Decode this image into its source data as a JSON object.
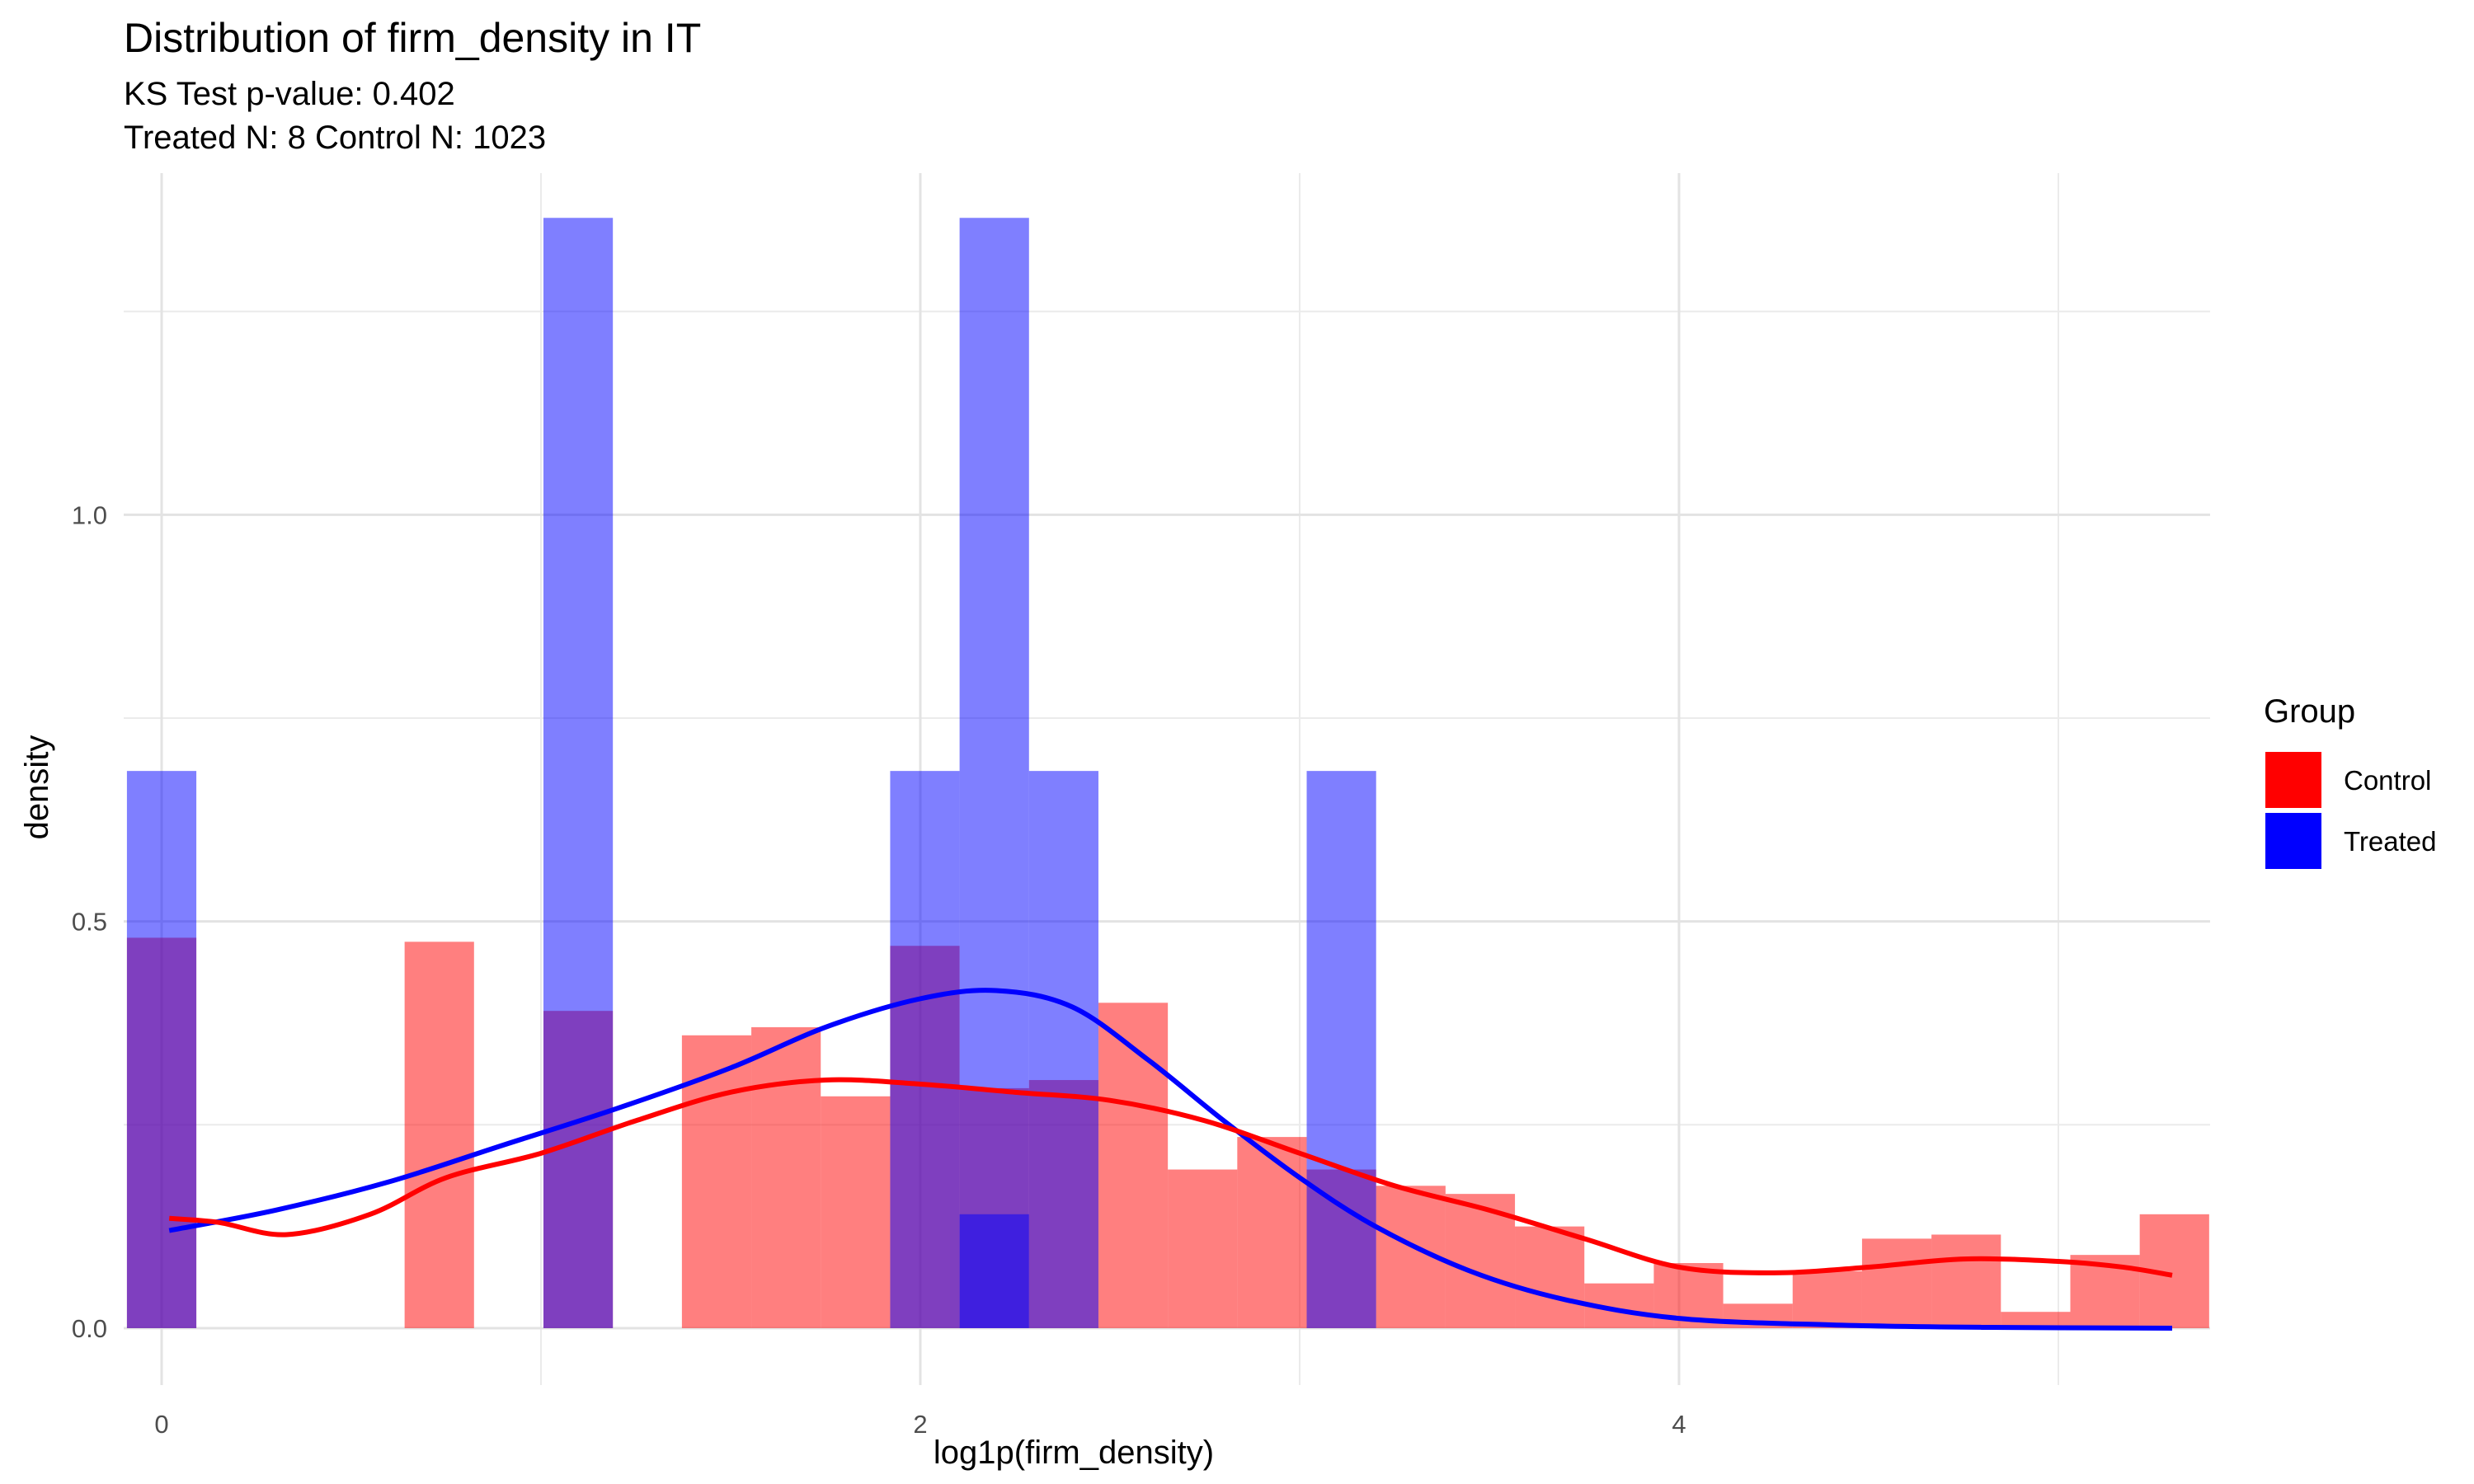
{
  "chart_data": {
    "type": "histogram",
    "title": "Distribution of firm_density in IT",
    "subtitle_line1": "KS Test p-value: 0.402",
    "subtitle_line2": "Treated N: 8 Control N: 1023",
    "xlabel": "log1p(firm_density)",
    "ylabel": "density",
    "xlim": [
      -0.1,
      5.4
    ],
    "ylim": [
      -0.07,
      1.42
    ],
    "x_ticks": [
      0,
      2,
      4
    ],
    "x_tick_labels": [
      "0",
      "2",
      "4"
    ],
    "y_ticks": [
      0.0,
      0.5,
      1.0
    ],
    "y_tick_labels": [
      "0.0",
      "0.5",
      "1.0"
    ],
    "grid": true,
    "legend_title": "Group",
    "legend_position": "right",
    "series": [
      {
        "name": "Control",
        "color": "#FF0000",
        "bin_width": 0.183,
        "bins": [
          {
            "x": 0.0,
            "density": 0.48
          },
          {
            "x": 0.732,
            "density": 0.475
          },
          {
            "x": 1.098,
            "density": 0.39
          },
          {
            "x": 1.463,
            "density": 0.36
          },
          {
            "x": 1.646,
            "density": 0.37
          },
          {
            "x": 1.829,
            "density": 0.285
          },
          {
            "x": 2.012,
            "density": 0.47
          },
          {
            "x": 2.195,
            "density": 0.295
          },
          {
            "x": 2.378,
            "density": 0.305
          },
          {
            "x": 2.561,
            "density": 0.4
          },
          {
            "x": 2.744,
            "density": 0.195
          },
          {
            "x": 2.927,
            "density": 0.235
          },
          {
            "x": 3.11,
            "density": 0.195
          },
          {
            "x": 3.293,
            "density": 0.175
          },
          {
            "x": 3.476,
            "density": 0.165
          },
          {
            "x": 3.659,
            "density": 0.125
          },
          {
            "x": 3.842,
            "density": 0.055
          },
          {
            "x": 4.025,
            "density": 0.08
          },
          {
            "x": 4.208,
            "density": 0.03
          },
          {
            "x": 4.391,
            "density": 0.07
          },
          {
            "x": 4.574,
            "density": 0.11
          },
          {
            "x": 4.757,
            "density": 0.115
          },
          {
            "x": 4.94,
            "density": 0.02
          },
          {
            "x": 5.123,
            "density": 0.09
          },
          {
            "x": 5.306,
            "density": 0.14
          }
        ],
        "density_curve": [
          [
            0.02,
            0.135
          ],
          [
            0.15,
            0.13
          ],
          [
            0.33,
            0.115
          ],
          [
            0.55,
            0.14
          ],
          [
            0.75,
            0.185
          ],
          [
            1.0,
            0.215
          ],
          [
            1.25,
            0.255
          ],
          [
            1.5,
            0.29
          ],
          [
            1.75,
            0.305
          ],
          [
            2.0,
            0.3
          ],
          [
            2.25,
            0.29
          ],
          [
            2.5,
            0.28
          ],
          [
            2.75,
            0.255
          ],
          [
            3.0,
            0.215
          ],
          [
            3.25,
            0.175
          ],
          [
            3.5,
            0.145
          ],
          [
            3.75,
            0.11
          ],
          [
            4.0,
            0.075
          ],
          [
            4.25,
            0.068
          ],
          [
            4.5,
            0.075
          ],
          [
            4.75,
            0.085
          ],
          [
            5.0,
            0.082
          ],
          [
            5.17,
            0.075
          ],
          [
            5.3,
            0.065
          ]
        ]
      },
      {
        "name": "Treated",
        "color": "#0000FF",
        "bin_width": 0.183,
        "bins": [
          {
            "x": 0.0,
            "density": 0.685
          },
          {
            "x": 1.098,
            "density": 1.365
          },
          {
            "x": 2.012,
            "density": 0.685
          },
          {
            "x": 2.195,
            "density": 1.365
          },
          {
            "x": 2.195,
            "density": 0.14
          },
          {
            "x": 2.378,
            "density": 0.685
          },
          {
            "x": 3.11,
            "density": 0.685
          }
        ],
        "density_curve": [
          [
            0.02,
            0.12
          ],
          [
            0.3,
            0.145
          ],
          [
            0.6,
            0.18
          ],
          [
            0.9,
            0.225
          ],
          [
            1.2,
            0.27
          ],
          [
            1.5,
            0.32
          ],
          [
            1.75,
            0.37
          ],
          [
            2.0,
            0.405
          ],
          [
            2.2,
            0.415
          ],
          [
            2.4,
            0.395
          ],
          [
            2.6,
            0.33
          ],
          [
            2.8,
            0.255
          ],
          [
            3.0,
            0.185
          ],
          [
            3.2,
            0.125
          ],
          [
            3.45,
            0.07
          ],
          [
            3.7,
            0.035
          ],
          [
            4.0,
            0.012
          ],
          [
            4.4,
            0.004
          ],
          [
            4.8,
            0.001
          ],
          [
            5.3,
            0.0
          ]
        ]
      }
    ]
  }
}
